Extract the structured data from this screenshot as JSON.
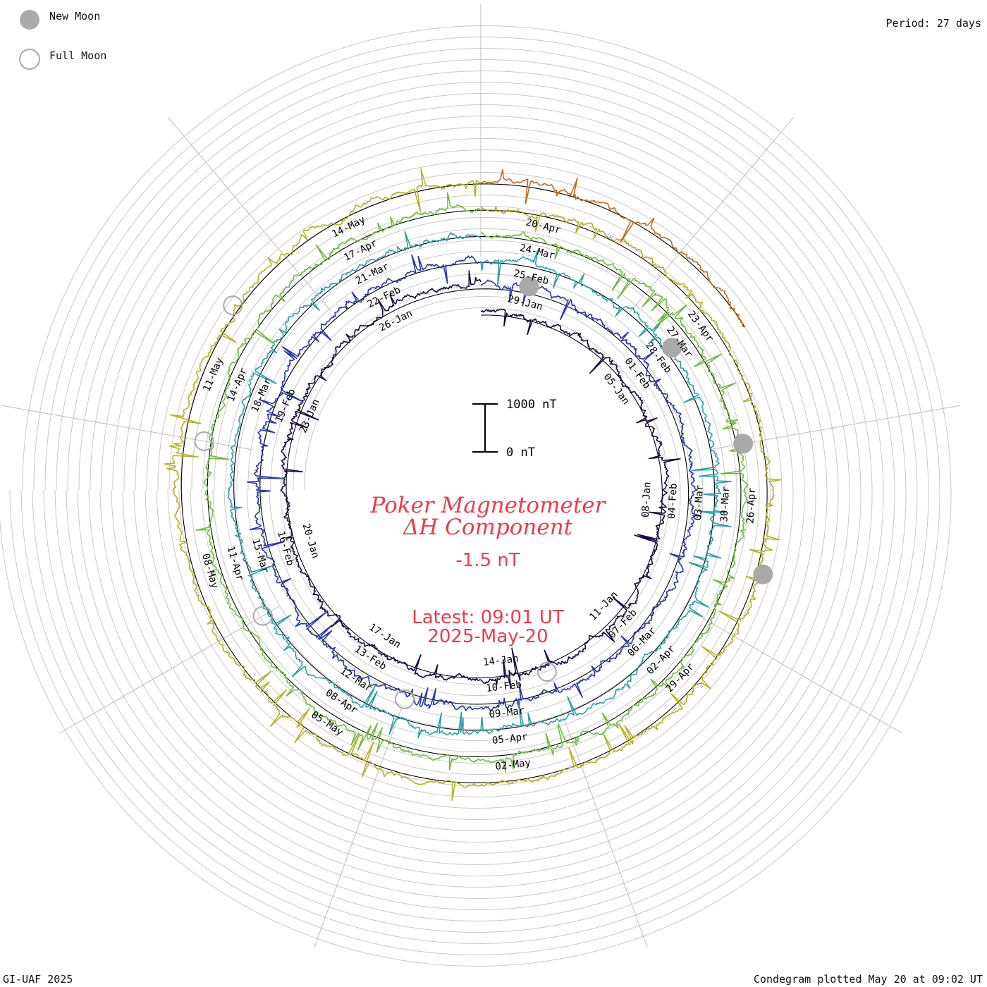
{
  "header": {
    "period": "Period: 27 days",
    "new_moon": "New Moon",
    "full_moon": "Full Moon"
  },
  "center": {
    "title_line1": "Poker Magnetometer",
    "title_line2": "ΔH Component",
    "current_value": "-1.5 nT",
    "latest_line1": "Latest: 09:01 UT",
    "latest_line2": "2025-May-20"
  },
  "scale": {
    "top_label": "1000 nT",
    "bottom_label": "0 nT"
  },
  "footer": {
    "left": "GI-UAF 2025",
    "right": "Condegram plotted May 20 at 09:02 UT"
  },
  "chart_data": {
    "type": "line",
    "layout": "spiral condegram",
    "period_days": 27,
    "title": "Poker Magnetometer ΔH Component",
    "units": "nT",
    "scale_bar_nT": [
      0,
      1000
    ],
    "date_labels": [
      "05-Jan",
      "08-Jan",
      "11-Jan",
      "14-Jan",
      "17-Jan",
      "20-Jan",
      "23-Jan",
      "26-Jan",
      "29-Jan",
      "01-Feb",
      "04-Feb",
      "07-Feb",
      "10-Feb",
      "13-Feb",
      "16-Feb",
      "19-Feb",
      "22-Feb",
      "25-Feb",
      "28-Feb",
      "03-Mar",
      "06-Mar",
      "09-Mar",
      "12-Mar",
      "15-Mar",
      "18-Mar",
      "21-Mar",
      "24-Mar",
      "27-Mar",
      "30-Mar",
      "02-Apr",
      "05-Apr",
      "08-Apr",
      "11-Apr",
      "14-Apr",
      "17-Apr",
      "20-Apr",
      "23-Apr",
      "26-Apr",
      "29-Apr",
      "02-May",
      "05-May",
      "08-May",
      "11-May",
      "14-May"
    ],
    "new_moons": [
      "29-Jan",
      "28-Feb",
      "29-Mar",
      "27-Apr"
    ],
    "full_moons": [
      "13-Jan",
      "12-Feb",
      "14-Mar",
      "13-Apr",
      "12-May"
    ],
    "series_colors": [
      "#1a0a3c",
      "#2436a8",
      "#28a0a8",
      "#6cbc3c",
      "#b8b020",
      "#c06a18",
      "#b01010"
    ],
    "start_date": "2025-01-01",
    "latest_value_nT": -1.5,
    "latest": "2025-May-20 09:01 UT"
  }
}
